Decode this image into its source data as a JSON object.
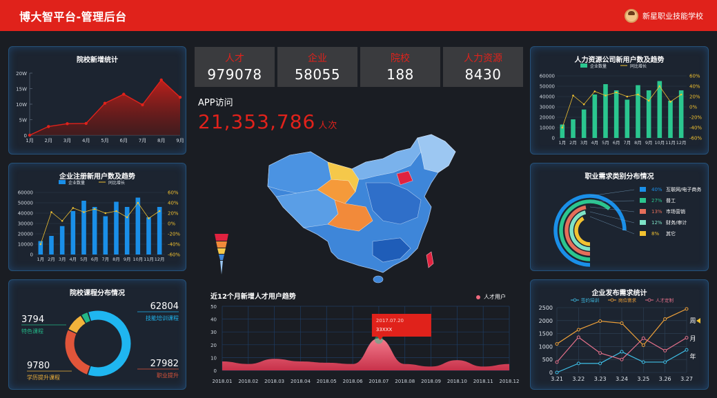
{
  "header": {
    "title": "博大智平台-管理后台",
    "school": "新星职业技能学校"
  },
  "stats": [
    {
      "label": "人才",
      "value": "979078"
    },
    {
      "label": "企业",
      "value": "58055"
    },
    {
      "label": "院校",
      "value": "188"
    },
    {
      "label": "人力资源",
      "value": "8430"
    }
  ],
  "app": {
    "label": "APP访问",
    "value": "21,353,786",
    "unit": "人次"
  },
  "colors": {
    "accent": "#e0221b",
    "panel_border": "#26527a",
    "bar_green": "#2bc68f",
    "bar_blue": "#1a8fe8",
    "line_yellow": "#f2c230"
  },
  "chart_data": [
    {
      "id": "school-growth",
      "type": "area",
      "title": "院校新增统计",
      "categories": [
        "1月",
        "2月",
        "3月",
        "4月",
        "5月",
        "6月",
        "7月",
        "8月",
        "9月"
      ],
      "values": [
        0,
        2.8,
        3.7,
        3.8,
        10.3,
        13.2,
        9.8,
        17.8,
        12.2
      ],
      "yticks": [
        "0",
        "5W",
        "10W",
        "15W",
        "20W"
      ],
      "ylim": [
        0,
        20
      ]
    },
    {
      "id": "enterprise-reg",
      "type": "bar",
      "title": "企业注册新用户数及趋势",
      "legend": [
        "企业数量",
        "同比增长"
      ],
      "categories": [
        "1月",
        "2月",
        "3月",
        "4月",
        "5月",
        "6月",
        "7月",
        "8月",
        "9月",
        "10月",
        "11月",
        "12月"
      ],
      "series": [
        {
          "name": "企业数量",
          "values": [
            13000,
            18000,
            27500,
            42000,
            52000,
            46000,
            37000,
            51000,
            46000,
            55000,
            36000,
            46000
          ]
        },
        {
          "name": "同比增长",
          "values": [
            -40,
            22,
            5,
            30,
            22,
            28,
            20,
            24,
            12,
            40,
            10,
            24
          ]
        }
      ],
      "yticks_left": [
        "0",
        "10000",
        "20000",
        "30000",
        "40000",
        "50000",
        "60000"
      ],
      "yticks_right": [
        "-60%",
        "-40%",
        "-20%",
        "0%",
        "20%",
        "40%",
        "60%"
      ]
    },
    {
      "id": "hr-company",
      "type": "bar",
      "title": "人力资源公司新用户数及趋势",
      "legend": [
        "企业数量",
        "同比增长"
      ],
      "categories": [
        "1月",
        "2月",
        "3月",
        "4月",
        "5月",
        "6月",
        "7月",
        "8月",
        "9月",
        "10月",
        "11月",
        "12月"
      ],
      "series": [
        {
          "name": "企业数量",
          "values": [
            13000,
            18000,
            27500,
            42000,
            52000,
            46000,
            37000,
            51000,
            46000,
            55000,
            36000,
            46000
          ]
        },
        {
          "name": "同比增长",
          "values": [
            -40,
            22,
            5,
            30,
            22,
            28,
            20,
            24,
            12,
            40,
            10,
            24
          ]
        }
      ],
      "yticks_left": [
        "0",
        "10000",
        "20000",
        "30000",
        "40000",
        "50000",
        "60000"
      ],
      "yticks_right": [
        "-60%",
        "-40%",
        "-20%",
        "0%",
        "20%",
        "40%",
        "60%"
      ]
    },
    {
      "id": "course-dist",
      "type": "pie",
      "title": "院校课程分布情况",
      "slices": [
        {
          "name": "技能培训课程",
          "value": 62804,
          "color": "#1fb6f0"
        },
        {
          "name": "职业提升",
          "value": 27982,
          "color": "#e0553a"
        },
        {
          "name": "学历提升课程",
          "value": 9780,
          "color": "#f2b33b"
        },
        {
          "name": "特色课程",
          "value": 3794,
          "color": "#23b787"
        }
      ]
    },
    {
      "id": "job-categories",
      "type": "pie",
      "title": "职业需求类别分布情况",
      "slices": [
        {
          "name": "互联网/电子商务",
          "value": 40,
          "label": "40%",
          "color": "#1a8fe8"
        },
        {
          "name": "普工",
          "value": 27,
          "label": "27%",
          "color": "#2bc68f"
        },
        {
          "name": "市场营销",
          "value": 13,
          "label": "13%",
          "color": "#e56e5a"
        },
        {
          "name": "财务/审计",
          "value": 12,
          "label": "12%",
          "color": "#7ee3c6"
        },
        {
          "name": "其它",
          "value": 8,
          "label": "8%",
          "color": "#f2c230"
        }
      ]
    },
    {
      "id": "talent-trend",
      "type": "area",
      "title": "近12个月新增人才用户趋势",
      "legend": [
        "人才用户"
      ],
      "categories": [
        "2018.01",
        "2018.02",
        "2018.03",
        "2018.04",
        "2018.05",
        "2018.06",
        "2018.07",
        "2018.08",
        "2018.09",
        "2018.10",
        "2018.11",
        "2018.12"
      ],
      "values": [
        7,
        5,
        9,
        7,
        6,
        5,
        25,
        5,
        3,
        8,
        3,
        5
      ],
      "yticks": [
        "0",
        "10",
        "20",
        "30",
        "40",
        "50"
      ],
      "ylim": [
        0,
        50
      ],
      "tooltip": {
        "date": "2017.07.20",
        "value": "33XXX"
      }
    },
    {
      "id": "enterprise-demand",
      "type": "line",
      "title": "企业发布需求统计",
      "legend": [
        "签约培训",
        "岗位需求",
        "人才定制"
      ],
      "categories": [
        "3.21",
        "3.22",
        "3.23",
        "3.24",
        "3.25",
        "3.26",
        "3.27"
      ],
      "series": [
        {
          "name": "签约培训",
          "values": [
            0,
            350,
            350,
            800,
            400,
            400,
            870
          ],
          "color": "#3fc0e8"
        },
        {
          "name": "岗位需求",
          "values": [
            1100,
            1650,
            1980,
            1900,
            1050,
            2060,
            2450
          ],
          "color": "#f0a23a"
        },
        {
          "name": "人才定制",
          "values": [
            400,
            1360,
            750,
            500,
            1320,
            840,
            1340
          ],
          "color": "#e5718a"
        }
      ],
      "yticks": [
        "0",
        "500",
        "1000",
        "1500",
        "2000",
        "2500"
      ],
      "ylim": [
        0,
        2500
      ],
      "side_labels": [
        "周",
        "月",
        "年"
      ]
    }
  ]
}
